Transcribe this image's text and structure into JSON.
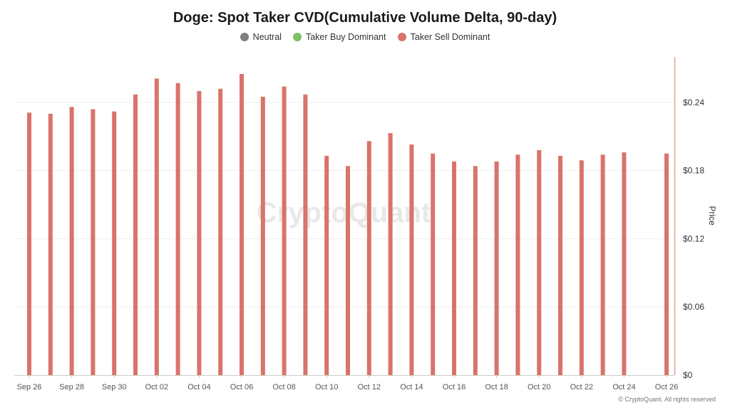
{
  "chart_data": {
    "type": "bar",
    "title": "Doge: Spot Taker CVD(Cumulative Volume Delta, 90-day)",
    "legend": [
      {
        "label": "Neutral",
        "color": "#808080"
      },
      {
        "label": "Taker Buy Dominant",
        "color": "#7fbf6a"
      },
      {
        "label": "Taker Sell Dominant",
        "color": "#d9736b"
      }
    ],
    "legend_position": "top-center",
    "ylabel": "Price",
    "y_axis_side": "right",
    "ylim": [
      0,
      0.28
    ],
    "yticks": [
      0,
      0.06,
      0.12,
      0.18,
      0.24
    ],
    "ytick_labels": [
      "$0",
      "$0.06",
      "$0.12",
      "$0.18",
      "$0.24"
    ],
    "x_tick_labels": [
      "Sep 26",
      "Sep 28",
      "Sep 30",
      "Oct 02",
      "Oct 04",
      "Oct 06",
      "Oct 08",
      "Oct 10",
      "Oct 12",
      "Oct 14",
      "Oct 16",
      "Oct 18",
      "Oct 20",
      "Oct 22",
      "Oct 24",
      "Oct 26"
    ],
    "grid": true,
    "watermark": "CryptoQuant",
    "series": [
      {
        "color": "#d9736b",
        "points": [
          {
            "date": "Sep 26",
            "value": 0.231
          },
          {
            "date": "Sep 27",
            "value": 0.23
          },
          {
            "date": "Sep 28",
            "value": 0.236
          },
          {
            "date": "Sep 29",
            "value": 0.234
          },
          {
            "date": "Sep 30",
            "value": 0.232
          },
          {
            "date": "Oct 01",
            "value": 0.247
          },
          {
            "date": "Oct 02",
            "value": 0.261
          },
          {
            "date": "Oct 03",
            "value": 0.257
          },
          {
            "date": "Oct 04",
            "value": 0.25
          },
          {
            "date": "Oct 05",
            "value": 0.252
          },
          {
            "date": "Oct 06",
            "value": 0.265
          },
          {
            "date": "Oct 07",
            "value": 0.245
          },
          {
            "date": "Oct 08",
            "value": 0.254
          },
          {
            "date": "Oct 09",
            "value": 0.247
          },
          {
            "date": "Oct 10",
            "value": 0.193
          },
          {
            "date": "Oct 11",
            "value": 0.184
          },
          {
            "date": "Oct 12",
            "value": 0.206
          },
          {
            "date": "Oct 13",
            "value": 0.213
          },
          {
            "date": "Oct 14",
            "value": 0.203
          },
          {
            "date": "Oct 15",
            "value": 0.195
          },
          {
            "date": "Oct 16",
            "value": 0.188
          },
          {
            "date": "Oct 17",
            "value": 0.184
          },
          {
            "date": "Oct 18",
            "value": 0.188
          },
          {
            "date": "Oct 19",
            "value": 0.194
          },
          {
            "date": "Oct 20",
            "value": 0.198
          },
          {
            "date": "Oct 21",
            "value": 0.193
          },
          {
            "date": "Oct 22",
            "value": 0.189
          },
          {
            "date": "Oct 23",
            "value": 0.194
          },
          {
            "date": "Oct 24",
            "value": 0.196
          },
          {
            "date": "Oct 26",
            "value": 0.195
          }
        ]
      }
    ]
  },
  "credit": "© CryptoQuant. All rights reserved"
}
